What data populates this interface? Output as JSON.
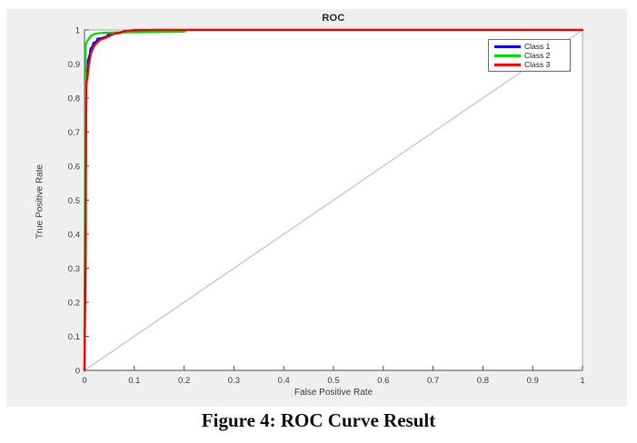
{
  "page": {
    "caption": "Figure 4: ROC Curve Result"
  },
  "chart_data": {
    "type": "line",
    "title": "ROC",
    "xlabel": "False Positive Rate",
    "ylabel": "True Positive Rate",
    "xlim": [
      0,
      1
    ],
    "ylim": [
      0,
      1
    ],
    "x_tick_labels": [
      "0",
      "0.1",
      "0.2",
      "0.3",
      "0.4",
      "0.5",
      "0.6",
      "0.7",
      "0.8",
      "0.9",
      "1"
    ],
    "y_tick_labels": [
      "0",
      "0.1",
      "0.2",
      "0.3",
      "0.4",
      "0.5",
      "0.6",
      "0.7",
      "0.8",
      "0.9",
      "1"
    ],
    "grid": false,
    "legend_position": "upper-right-inside",
    "background_color": "#efefef",
    "plot_background_color": "#ffffff",
    "axis_color": "#4d4d4d",
    "box_color": "#a8a8a8",
    "tick_label_color": "#3c3c3c",
    "reference_line": {
      "name": "chance-diagonal",
      "from": [
        0,
        0
      ],
      "to": [
        1,
        1
      ],
      "color": "#c9c9c9"
    },
    "series": [
      {
        "name": "Class 1",
        "color": "#0000ff",
        "points": [
          [
            0,
            0
          ],
          [
            0.002,
            0.3
          ],
          [
            0.003,
            0.62
          ],
          [
            0.003,
            0.84
          ],
          [
            0.005,
            0.855
          ],
          [
            0.005,
            0.875
          ],
          [
            0.007,
            0.895
          ],
          [
            0.007,
            0.91
          ],
          [
            0.01,
            0.925
          ],
          [
            0.011,
            0.93
          ],
          [
            0.012,
            0.945
          ],
          [
            0.016,
            0.952
          ],
          [
            0.018,
            0.962
          ],
          [
            0.024,
            0.966
          ],
          [
            0.026,
            0.974
          ],
          [
            0.035,
            0.976
          ],
          [
            0.045,
            0.981
          ],
          [
            0.047,
            0.986
          ],
          [
            0.06,
            0.989
          ],
          [
            0.075,
            0.992
          ],
          [
            0.08,
            0.997
          ],
          [
            0.13,
            0.998
          ],
          [
            0.135,
            1
          ],
          [
            1,
            1
          ]
        ]
      },
      {
        "name": "Class 2",
        "color": "#00dd00",
        "points": [
          [
            0,
            0
          ],
          [
            0.001,
            0.55
          ],
          [
            0.002,
            0.86
          ],
          [
            0.002,
            0.955
          ],
          [
            0.005,
            0.966
          ],
          [
            0.009,
            0.975
          ],
          [
            0.014,
            0.984
          ],
          [
            0.022,
            0.989
          ],
          [
            0.04,
            0.992
          ],
          [
            0.08,
            0.993
          ],
          [
            0.13,
            0.994
          ],
          [
            0.2,
            0.995
          ],
          [
            0.205,
            1
          ],
          [
            1,
            1
          ]
        ]
      },
      {
        "name": "Class 3",
        "color": "#ff0000",
        "points": [
          [
            0,
            0
          ],
          [
            0.002,
            0.45
          ],
          [
            0.003,
            0.7
          ],
          [
            0.004,
            0.845
          ],
          [
            0.006,
            0.862
          ],
          [
            0.009,
            0.9
          ],
          [
            0.013,
            0.932
          ],
          [
            0.02,
            0.955
          ],
          [
            0.03,
            0.97
          ],
          [
            0.045,
            0.979
          ],
          [
            0.06,
            0.989
          ],
          [
            0.08,
            0.996
          ],
          [
            0.1,
            1
          ],
          [
            1,
            1
          ]
        ]
      }
    ]
  }
}
